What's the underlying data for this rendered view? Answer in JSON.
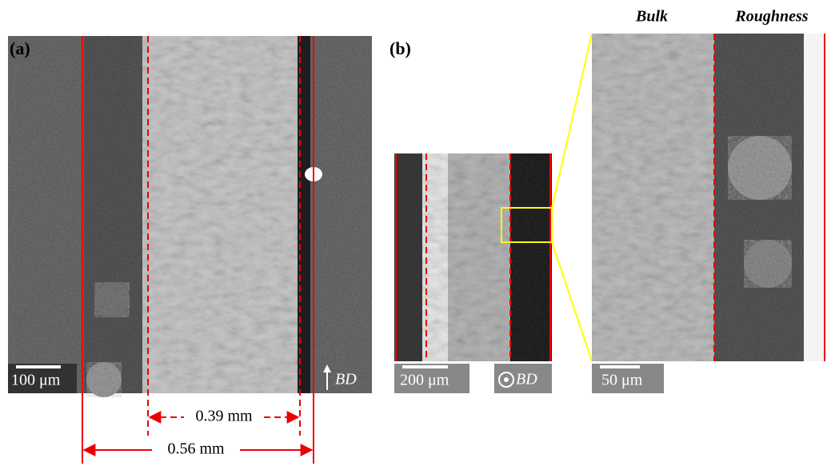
{
  "panel_a": {
    "label": "(a)",
    "scale_bar": "100 μm",
    "direction": "BD",
    "inner_width": "0.39 mm",
    "outer_width": "0.56 mm"
  },
  "panel_b": {
    "label": "(b)",
    "scale_bar": "200 μm",
    "direction": "BD",
    "zoom_scale_bar": "50 μm",
    "region_bulk": "Bulk",
    "region_roughness": "Roughness"
  }
}
